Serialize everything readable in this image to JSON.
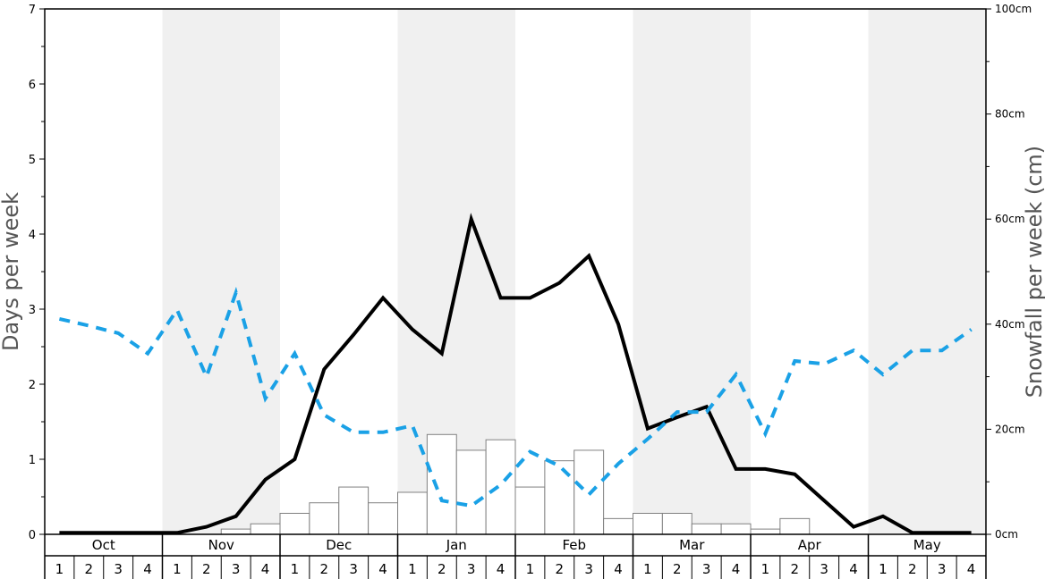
{
  "chart_data": {
    "type": "bar+line",
    "months": [
      "Oct",
      "Nov",
      "Dec",
      "Jan",
      "Feb",
      "Mar",
      "Apr",
      "May"
    ],
    "weeks": [
      "1",
      "2",
      "3",
      "4"
    ],
    "left_axis": {
      "label": "Days per week",
      "ylim": [
        0,
        7
      ],
      "ticks": [
        "0",
        "1",
        "2",
        "3",
        "4",
        "5",
        "6",
        "7"
      ]
    },
    "right_axis": {
      "label": "Snowfall per week (cm)",
      "ylim": [
        0,
        100
      ],
      "ticks": [
        "0cm",
        "20cm",
        "40cm",
        "60cm",
        "80cm",
        "100cm"
      ]
    },
    "series": [
      {
        "name": "Snowfall (cm)",
        "kind": "bar",
        "axis": "right",
        "values": [
          0,
          0,
          0,
          0,
          0,
          0,
          1,
          2,
          4,
          6,
          9,
          6,
          8,
          19,
          16,
          18,
          9,
          14,
          16,
          3,
          4,
          4,
          2,
          2,
          1,
          3,
          0,
          0,
          0,
          0,
          0,
          0
        ]
      },
      {
        "kind": "line",
        "axis": "left",
        "style": "solid",
        "color": "#000000",
        "values": [
          0.02,
          0.02,
          0.02,
          0.02,
          0.02,
          0.1,
          0.24,
          0.73,
          1.0,
          2.2,
          2.66,
          3.15,
          2.73,
          2.41,
          4.2,
          3.15,
          3.15,
          3.35,
          3.71,
          2.8,
          1.41,
          1.56,
          1.7,
          0.87,
          0.87,
          0.8,
          0.45,
          0.1,
          0.24,
          0.02,
          0.02,
          0.02
        ]
      },
      {
        "kind": "line",
        "axis": "left",
        "style": "dashed",
        "color": "#1aa1e6",
        "values": [
          2.87,
          2.78,
          2.68,
          2.41,
          2.99,
          2.1,
          3.22,
          1.81,
          2.41,
          1.59,
          1.36,
          1.36,
          1.45,
          0.45,
          0.38,
          0.66,
          1.1,
          0.91,
          0.53,
          0.94,
          1.27,
          1.63,
          1.63,
          2.13,
          1.34,
          2.31,
          2.27,
          2.45,
          2.13,
          2.45,
          2.45,
          2.73
        ]
      }
    ],
    "shaded_months": [
      "Nov",
      "Jan",
      "Mar",
      "May"
    ],
    "colors": {
      "shade": "#f0f0f0",
      "bar_stroke": "#808080",
      "bar_fill": "#ffffff"
    },
    "grid": false
  }
}
